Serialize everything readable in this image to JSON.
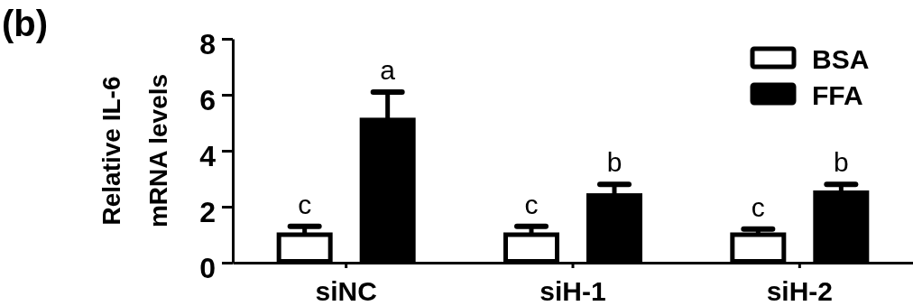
{
  "chart_data": {
    "type": "bar",
    "title": "(b)",
    "ylabel": "Relative IL-6\nmRNA levels",
    "categories": [
      "siNC",
      "siH-1",
      "siH-2"
    ],
    "series": [
      {
        "name": "BSA",
        "color": "#ffffff",
        "values": [
          1.0,
          1.0,
          1.0
        ],
        "errors": [
          0.3,
          0.3,
          0.2
        ],
        "value_labels": [
          "c",
          "c",
          "c"
        ]
      },
      {
        "name": "FFA",
        "color": "#000000",
        "values": [
          5.1,
          2.4,
          2.5
        ],
        "errors": [
          1.0,
          0.4,
          0.3
        ],
        "value_labels": [
          "a",
          "b",
          "b"
        ]
      }
    ],
    "ylim": [
      0,
      8
    ],
    "yticks": [
      0,
      2,
      4,
      6,
      8
    ],
    "legend": "top right"
  }
}
